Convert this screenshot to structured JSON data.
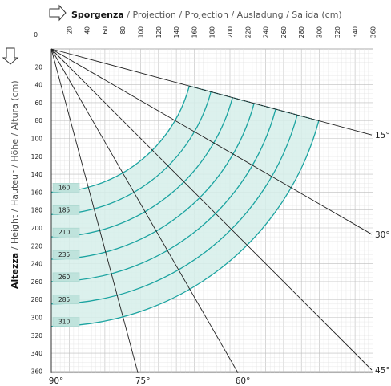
{
  "title_x": {
    "bold": "Sporgenza",
    "rest": " / Projection / Projection / Ausladung / Salida (cm)"
  },
  "title_y": {
    "bold": "Altezza",
    "rest": " / Height / Hauteur / Höhe / Altura  (cm)"
  },
  "x_ticks": [
    "0",
    "20",
    "40",
    "60",
    "80",
    "100",
    "120",
    "140",
    "160",
    "180",
    "200",
    "220",
    "240",
    "260",
    "280",
    "300",
    "320",
    "340",
    "360"
  ],
  "y_ticks": [
    "20",
    "40",
    "60",
    "80",
    "100",
    "120",
    "140",
    "160",
    "180",
    "200",
    "220",
    "240",
    "260",
    "280",
    "300",
    "320",
    "340",
    "360"
  ],
  "angles": [
    {
      "label": "15°",
      "deg": 15
    },
    {
      "label": "30°",
      "deg": 30
    },
    {
      "label": "45°",
      "deg": 45
    },
    {
      "label": "60°",
      "deg": 60
    },
    {
      "label": "75°",
      "deg": 75
    },
    {
      "label": "90°",
      "deg": 90
    }
  ],
  "arm_lengths": [
    {
      "label": "160",
      "cm": 160
    },
    {
      "label": "185",
      "cm": 185
    },
    {
      "label": "210",
      "cm": 210
    },
    {
      "label": "235",
      "cm": 235
    },
    {
      "label": "260",
      "cm": 260
    },
    {
      "label": "285",
      "cm": 285
    },
    {
      "label": "310",
      "cm": 310
    }
  ],
  "colors": {
    "arc": "#1aa3a0",
    "fill": "#d6eeea",
    "label_bg": "#bfe3dc",
    "grid_major": "#bdbdbd",
    "grid_minor": "#e2e2e2",
    "ray": "#222222"
  },
  "icons": {
    "x_axis": "arrow-right-outline-icon",
    "y_axis": "arrow-down-outline-icon"
  }
}
